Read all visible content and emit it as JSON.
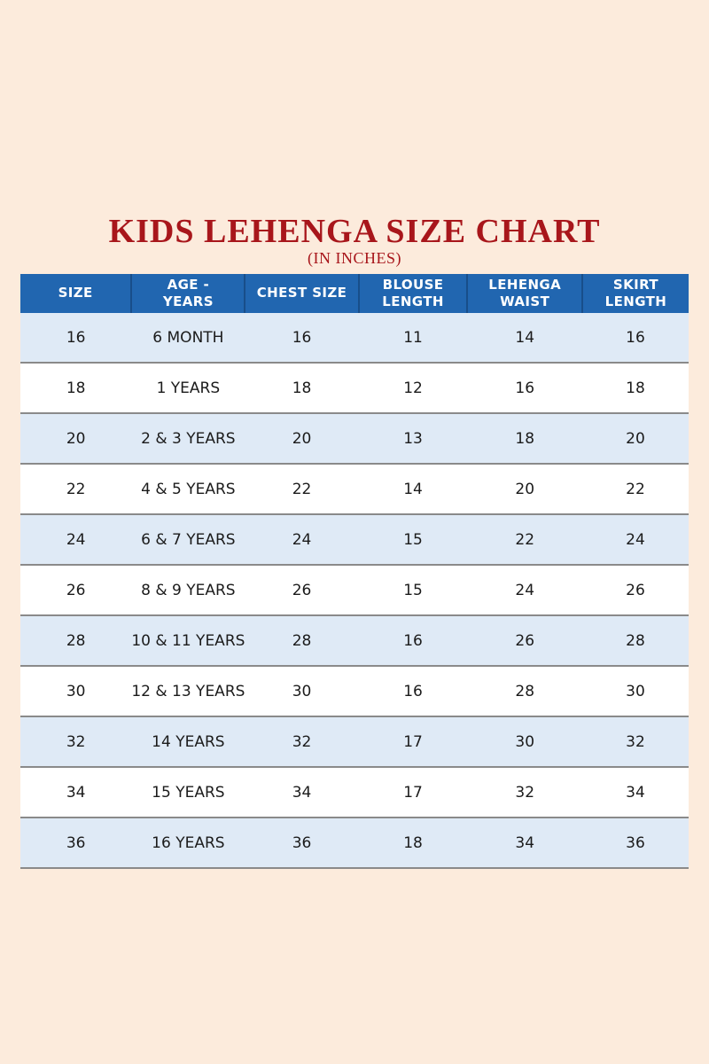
{
  "chart_data": {
    "type": "table",
    "title": "KIDS LEHENGA SIZE CHART",
    "subtitle": "(IN INCHES)",
    "columns": [
      "SIZE",
      "AGE - YEARS",
      "CHEST SIZE",
      "BLOUSE LENGTH",
      "LEHENGA WAIST",
      "SKIRT LENGTH"
    ],
    "rows": [
      [
        "16",
        "6 MONTH",
        "16",
        "11",
        "14",
        "16"
      ],
      [
        "18",
        "1 YEARS",
        "18",
        "12",
        "16",
        "18"
      ],
      [
        "20",
        "2 & 3 YEARS",
        "20",
        "13",
        "18",
        "20"
      ],
      [
        "22",
        "4 & 5 YEARS",
        "22",
        "14",
        "20",
        "22"
      ],
      [
        "24",
        "6 & 7 YEARS",
        "24",
        "15",
        "22",
        "24"
      ],
      [
        "26",
        "8 & 9 YEARS",
        "26",
        "15",
        "24",
        "26"
      ],
      [
        "28",
        "10 & 11 YEARS",
        "28",
        "16",
        "26",
        "28"
      ],
      [
        "30",
        "12 & 13 YEARS",
        "30",
        "16",
        "28",
        "30"
      ],
      [
        "32",
        "14 YEARS",
        "32",
        "17",
        "30",
        "32"
      ],
      [
        "34",
        "15 YEARS",
        "34",
        "17",
        "32",
        "34"
      ],
      [
        "36",
        "16 YEARS",
        "36",
        "18",
        "34",
        "36"
      ]
    ],
    "layout": {
      "row_striping": "alternating light-blue and white, starting light-blue",
      "grid": "horizontal row separators only; vertical separators in header only"
    }
  },
  "colors": {
    "page_background": "#fcebdc",
    "title_red": "#a8161b",
    "header_blue": "#2166b0",
    "header_text": "#ffffff",
    "alt_row_blue": "#dfeaf6",
    "row_white": "#ffffff",
    "row_border_gray": "#8a8a8a",
    "body_text": "#1b1b1b"
  }
}
